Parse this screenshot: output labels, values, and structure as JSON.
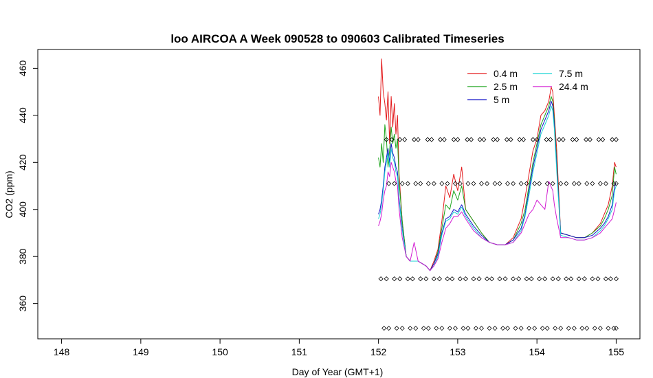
{
  "chart_data": {
    "type": "line",
    "title": "loo AIRCOA A  Week 090528 to 090603  Calibrated Timeseries",
    "xlabel": "Day of Year (GMT+1)",
    "ylabel": "CO2 (ppm)",
    "xlim": [
      147.7,
      155.3
    ],
    "ylim": [
      345,
      468
    ],
    "x_ticks": [
      148,
      149,
      150,
      151,
      152,
      153,
      154,
      155
    ],
    "y_ticks": [
      360,
      380,
      400,
      420,
      440,
      460
    ],
    "legend_position": "top-right",
    "series": [
      {
        "name": "0.4 m",
        "color": "#e31a1c",
        "x": [
          152.0,
          152.02,
          152.04,
          152.06,
          152.08,
          152.1,
          152.12,
          152.14,
          152.16,
          152.18,
          152.2,
          152.22,
          152.24,
          152.26,
          152.3,
          152.35,
          152.4,
          152.5,
          152.6,
          152.65,
          152.7,
          152.75,
          152.8,
          152.85,
          152.9,
          152.95,
          153.0,
          153.05,
          153.1,
          153.2,
          153.3,
          153.4,
          153.5,
          153.6,
          153.7,
          153.8,
          153.85,
          153.9,
          153.95,
          154.0,
          154.05,
          154.1,
          154.15,
          154.18,
          154.2,
          154.22,
          154.25,
          154.3,
          154.4,
          154.5,
          154.6,
          154.7,
          154.8,
          154.85,
          154.9,
          154.95,
          154.98,
          155.0
        ],
        "y": [
          448,
          440,
          464,
          450,
          445,
          438,
          450,
          428,
          448,
          435,
          445,
          432,
          440,
          415,
          395,
          380,
          378,
          378,
          376,
          374,
          378,
          383,
          395,
          410,
          405,
          415,
          408,
          418,
          400,
          395,
          390,
          386,
          385,
          385,
          388,
          396,
          405,
          415,
          425,
          430,
          440,
          442,
          446,
          452,
          450,
          440,
          425,
          390,
          389,
          388,
          388,
          390,
          394,
          398,
          402,
          410,
          420,
          418
        ]
      },
      {
        "name": "2.5 m",
        "color": "#1aa51a",
        "x": [
          152.0,
          152.02,
          152.04,
          152.06,
          152.08,
          152.1,
          152.12,
          152.14,
          152.16,
          152.18,
          152.2,
          152.22,
          152.24,
          152.26,
          152.3,
          152.35,
          152.4,
          152.5,
          152.6,
          152.65,
          152.7,
          152.75,
          152.8,
          152.85,
          152.9,
          152.95,
          153.0,
          153.05,
          153.1,
          153.2,
          153.3,
          153.4,
          153.5,
          153.6,
          153.7,
          153.8,
          153.85,
          153.9,
          153.95,
          154.0,
          154.05,
          154.1,
          154.15,
          154.18,
          154.2,
          154.22,
          154.25,
          154.3,
          154.4,
          154.5,
          154.6,
          154.7,
          154.8,
          154.85,
          154.9,
          154.95,
          154.98,
          155.0
        ],
        "y": [
          422,
          418,
          428,
          420,
          436,
          430,
          418,
          425,
          435,
          428,
          432,
          426,
          430,
          412,
          395,
          380,
          378,
          378,
          376,
          374,
          377,
          382,
          392,
          402,
          400,
          408,
          404,
          410,
          400,
          395,
          390,
          386,
          385,
          385,
          387,
          394,
          400,
          410,
          420,
          428,
          436,
          440,
          444,
          448,
          446,
          438,
          420,
          390,
          389,
          388,
          388,
          390,
          393,
          396,
          400,
          406,
          418,
          415
        ]
      },
      {
        "name": "5 m",
        "color": "#1414c8",
        "x": [
          152.0,
          152.02,
          152.04,
          152.06,
          152.08,
          152.1,
          152.12,
          152.14,
          152.16,
          152.18,
          152.2,
          152.22,
          152.24,
          152.26,
          152.3,
          152.35,
          152.4,
          152.5,
          152.6,
          152.65,
          152.7,
          152.75,
          152.8,
          152.85,
          152.9,
          152.95,
          153.0,
          153.05,
          153.1,
          153.2,
          153.3,
          153.4,
          153.5,
          153.6,
          153.7,
          153.8,
          153.85,
          153.9,
          153.95,
          154.0,
          154.05,
          154.1,
          154.15,
          154.18,
          154.2,
          154.22,
          154.25,
          154.3,
          154.4,
          154.5,
          154.6,
          154.7,
          154.8,
          154.85,
          154.9,
          154.95,
          154.98,
          155.0
        ],
        "y": [
          398,
          400,
          404,
          410,
          418,
          422,
          426,
          420,
          428,
          424,
          422,
          418,
          416,
          405,
          392,
          380,
          378,
          378,
          376,
          374,
          377,
          381,
          390,
          396,
          397,
          400,
          399,
          402,
          398,
          393,
          389,
          386,
          385,
          385,
          387,
          392,
          398,
          408,
          418,
          426,
          434,
          438,
          442,
          446,
          444,
          436,
          418,
          390,
          389,
          388,
          388,
          389,
          392,
          394,
          397,
          402,
          410,
          411
        ]
      },
      {
        "name": "7.5 m",
        "color": "#19d3d3",
        "x": [
          152.0,
          152.02,
          152.04,
          152.06,
          152.08,
          152.1,
          152.12,
          152.14,
          152.16,
          152.18,
          152.2,
          152.22,
          152.24,
          152.26,
          152.3,
          152.35,
          152.4,
          152.5,
          152.6,
          152.65,
          152.7,
          152.75,
          152.8,
          152.85,
          152.9,
          152.95,
          153.0,
          153.05,
          153.1,
          153.2,
          153.3,
          153.4,
          153.5,
          153.6,
          153.7,
          153.8,
          153.85,
          153.9,
          153.95,
          154.0,
          154.05,
          154.1,
          154.15,
          154.18,
          154.2,
          154.22,
          154.25,
          154.3,
          154.4,
          154.5,
          154.6,
          154.7,
          154.8,
          154.85,
          154.9,
          154.95,
          154.98,
          155.0
        ],
        "y": [
          396,
          398,
          402,
          408,
          416,
          420,
          424,
          418,
          426,
          422,
          420,
          416,
          414,
          404,
          391,
          380,
          378,
          378,
          376,
          374,
          376,
          380,
          389,
          395,
          396,
          399,
          398,
          401,
          397,
          392,
          388,
          386,
          385,
          385,
          386,
          391,
          397,
          406,
          416,
          424,
          432,
          436,
          440,
          444,
          442,
          434,
          416,
          389,
          388,
          387,
          387,
          388,
          391,
          393,
          396,
          400,
          408,
          410
        ]
      },
      {
        "name": "24.4 m",
        "color": "#d21ad2",
        "x": [
          152.0,
          152.02,
          152.04,
          152.06,
          152.08,
          152.1,
          152.12,
          152.14,
          152.16,
          152.18,
          152.2,
          152.22,
          152.24,
          152.26,
          152.3,
          152.35,
          152.4,
          152.45,
          152.5,
          152.6,
          152.65,
          152.7,
          152.75,
          152.8,
          152.85,
          152.9,
          152.95,
          153.0,
          153.05,
          153.1,
          153.2,
          153.3,
          153.4,
          153.5,
          153.6,
          153.7,
          153.8,
          153.85,
          153.9,
          153.95,
          154.0,
          154.05,
          154.1,
          154.15,
          154.2,
          154.22,
          154.25,
          154.3,
          154.4,
          154.5,
          154.6,
          154.7,
          154.8,
          154.85,
          154.9,
          154.95,
          154.98,
          155.0
        ],
        "y": [
          393,
          395,
          398,
          404,
          408,
          410,
          416,
          414,
          420,
          418,
          416,
          412,
          410,
          400,
          388,
          380,
          378,
          386,
          378,
          376,
          374,
          376,
          379,
          386,
          392,
          394,
          397,
          397,
          399,
          396,
          391,
          388,
          386,
          385,
          385,
          386,
          390,
          394,
          398,
          400,
          404,
          402,
          400,
          412,
          408,
          402,
          396,
          388,
          388,
          387,
          387,
          388,
          390,
          392,
          394,
          396,
          400,
          403
        ]
      }
    ],
    "markers": {
      "symbol": "diamond",
      "rows": [
        {
          "y": 429.7,
          "x": [
            152.1,
            152.17,
            152.27,
            152.33,
            152.45,
            152.5,
            152.62,
            152.67,
            152.78,
            152.83,
            152.95,
            153.0,
            153.12,
            153.17,
            153.28,
            153.33,
            153.45,
            153.5,
            153.62,
            153.67,
            153.78,
            153.83,
            153.95,
            154.0,
            154.12,
            154.17,
            154.28,
            154.33,
            154.45,
            154.5,
            154.62,
            154.67,
            154.78,
            154.83,
            154.95,
            155.0
          ]
        },
        {
          "y": 411,
          "x": [
            152.13,
            152.2,
            152.3,
            152.37,
            152.47,
            152.53,
            152.63,
            152.7,
            152.8,
            152.87,
            152.97,
            153.03,
            153.13,
            153.2,
            153.3,
            153.37,
            153.47,
            153.53,
            153.63,
            153.7,
            153.8,
            153.87,
            153.97,
            154.03,
            154.13,
            154.2,
            154.3,
            154.37,
            154.47,
            154.53,
            154.63,
            154.7,
            154.8,
            154.87,
            154.97,
            155.0
          ]
        },
        {
          "y": 370.5,
          "x": [
            152.03,
            152.1,
            152.2,
            152.27,
            152.37,
            152.43,
            152.53,
            152.6,
            152.7,
            152.77,
            152.87,
            152.93,
            153.03,
            153.1,
            153.2,
            153.27,
            153.37,
            153.43,
            153.53,
            153.6,
            153.7,
            153.77,
            153.87,
            153.93,
            154.03,
            154.1,
            154.2,
            154.27,
            154.37,
            154.43,
            154.53,
            154.6,
            154.7,
            154.77,
            154.87,
            154.93,
            155.0
          ]
        },
        {
          "y": 349.5,
          "x": [
            152.07,
            152.13,
            152.23,
            152.3,
            152.4,
            152.47,
            152.57,
            152.63,
            152.73,
            152.8,
            152.9,
            152.97,
            153.07,
            153.13,
            153.23,
            153.3,
            153.4,
            153.47,
            153.57,
            153.63,
            153.73,
            153.8,
            153.9,
            153.97,
            154.07,
            154.13,
            154.23,
            154.3,
            154.4,
            154.47,
            154.57,
            154.63,
            154.73,
            154.8,
            154.9,
            154.97,
            155.0
          ]
        }
      ]
    }
  }
}
